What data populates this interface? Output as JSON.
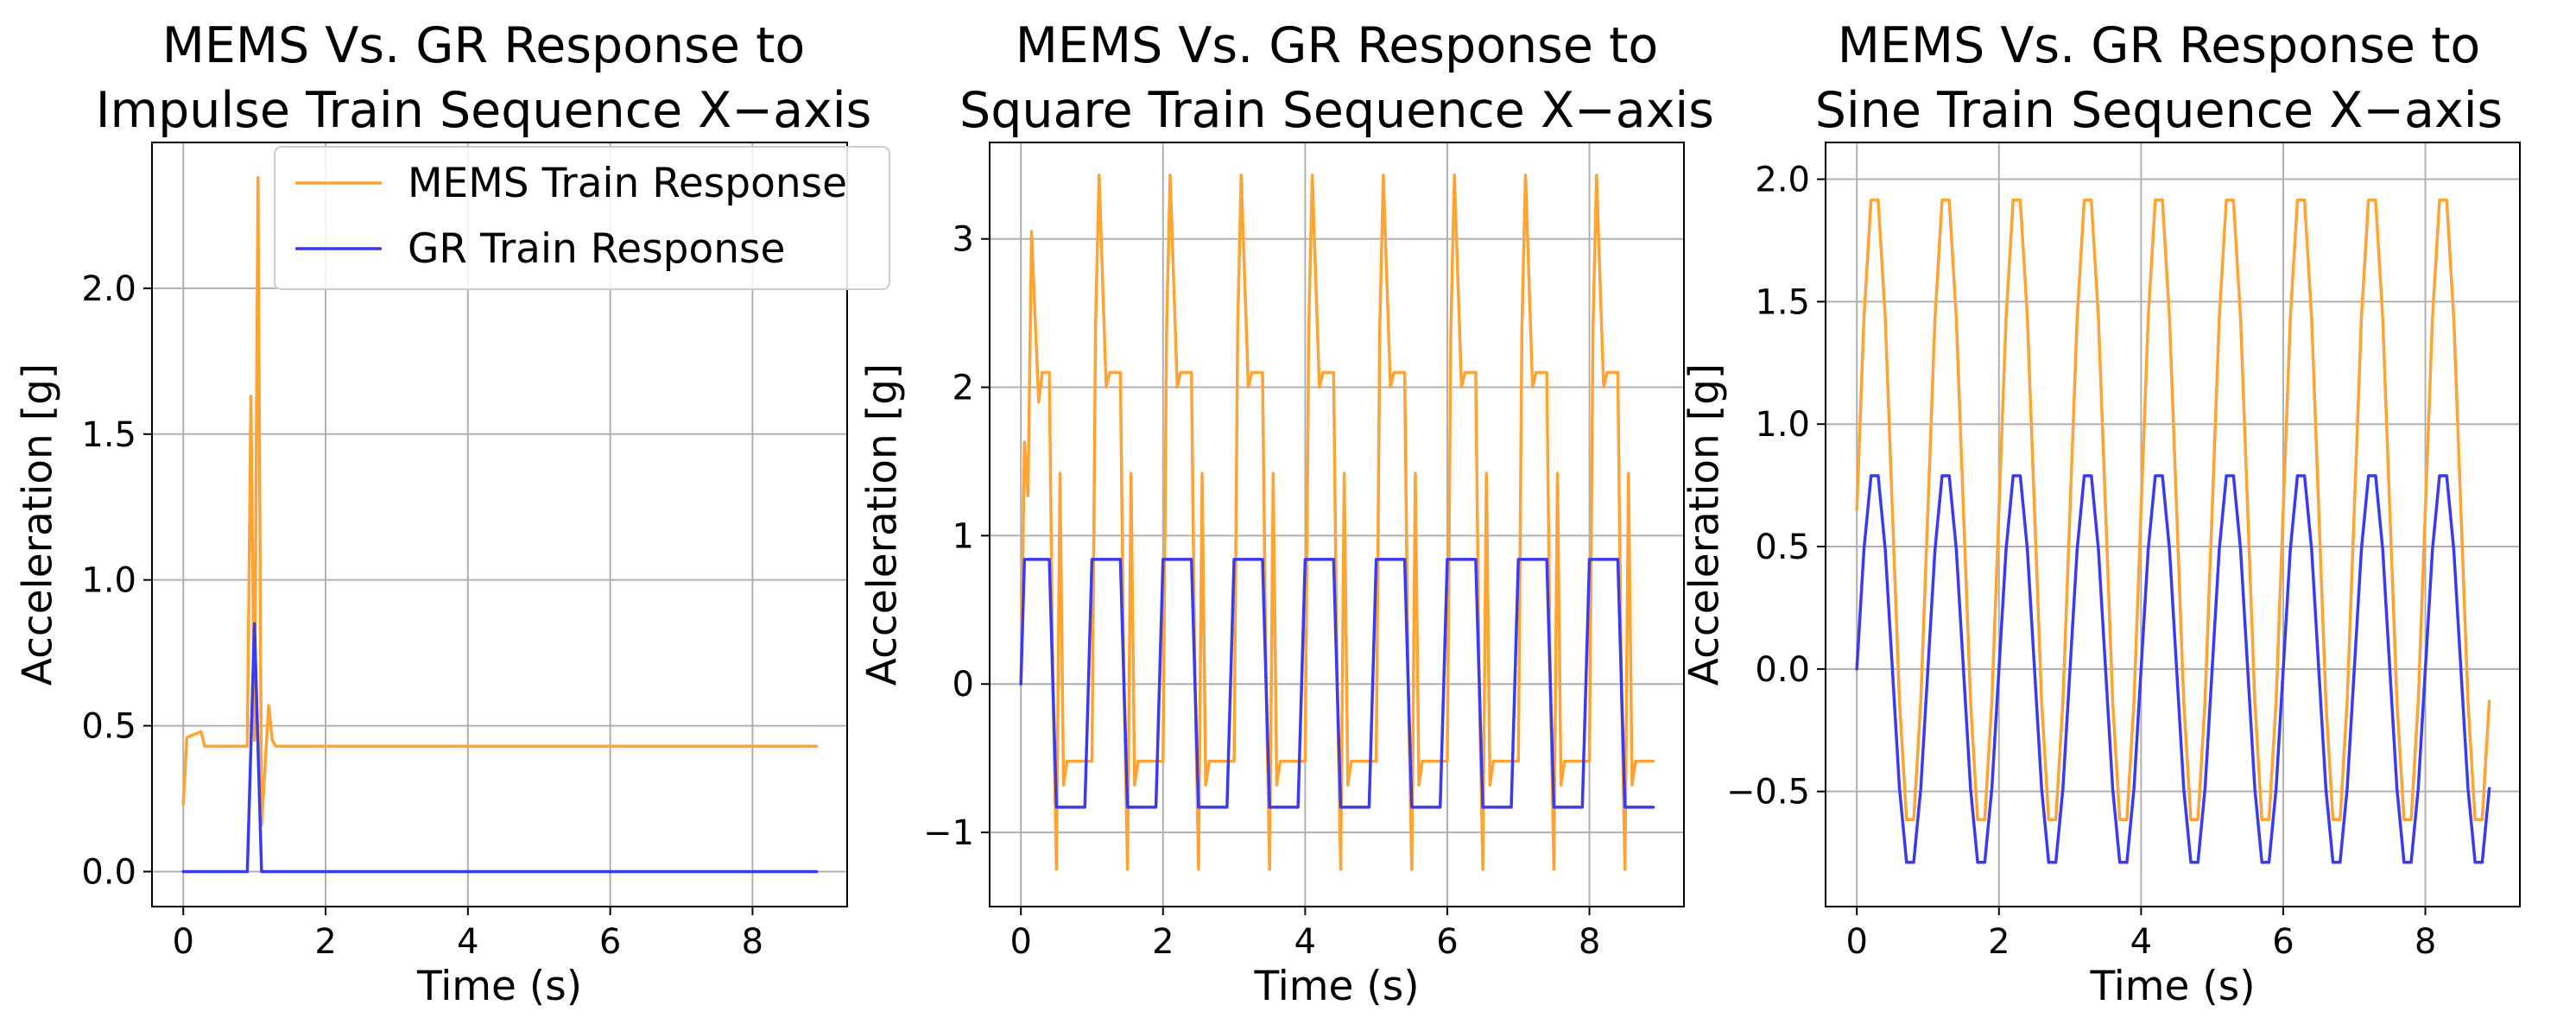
{
  "figure": {
    "colors": {
      "mems": "#FFA333",
      "gr": "#3A3AF0"
    },
    "legend": {
      "placement": "upper-right",
      "entries": [
        "MEMS Train Response",
        "GR Train Response"
      ]
    }
  },
  "chart_data": [
    {
      "type": "line",
      "title_lines": [
        "MEMS Vs. GR Response to",
        "Impulse Train Sequence X−axis"
      ],
      "xlabel": "Time (s)",
      "ylabel": "Acceleration [g]",
      "xlim": [
        -0.44,
        9.33
      ],
      "ylim": [
        -0.12,
        2.5
      ],
      "xticks": [
        0,
        2,
        4,
        6,
        8
      ],
      "xtick_labels": [
        "0",
        "2",
        "4",
        "6",
        "8"
      ],
      "yticks": [
        0.0,
        0.5,
        1.0,
        1.5,
        2.0
      ],
      "ytick_labels": [
        "0.0",
        "0.5",
        "1.0",
        "1.5",
        "2.0"
      ],
      "grid": true,
      "show_legend": true,
      "series": [
        {
          "name": "MEMS Train Response",
          "color": "#FFA333",
          "x": [
            0.0,
            0.05,
            0.15,
            0.25,
            0.3,
            0.4,
            0.6,
            0.8,
            0.9,
            0.95,
            1.0,
            1.05,
            1.1,
            1.2,
            1.25,
            1.3,
            1.4,
            1.6,
            2.0,
            2.5,
            3.0,
            3.5,
            4.0,
            4.5,
            5.0,
            5.5,
            6.0,
            6.5,
            7.0,
            7.5,
            8.0,
            8.5,
            8.9
          ],
          "y": [
            0.23,
            0.46,
            0.47,
            0.48,
            0.43,
            0.43,
            0.43,
            0.43,
            0.43,
            1.63,
            0.45,
            2.38,
            0.16,
            0.57,
            0.45,
            0.43,
            0.43,
            0.43,
            0.43,
            0.43,
            0.43,
            0.43,
            0.43,
            0.43,
            0.43,
            0.43,
            0.43,
            0.43,
            0.43,
            0.43,
            0.43,
            0.43,
            0.43
          ]
        },
        {
          "name": "GR Train Response",
          "color": "#3A3AF0",
          "x": [
            0.0,
            0.9,
            1.0,
            1.1,
            8.9
          ],
          "y": [
            0.0,
            0.0,
            0.85,
            0.0,
            0.0
          ]
        }
      ]
    },
    {
      "type": "line",
      "title_lines": [
        "MEMS Vs. GR Response to",
        "Square Train Sequence X−axis"
      ],
      "xlabel": "Time (s)",
      "ylabel": "Acceleration [g]",
      "xlim": [
        -0.44,
        9.33
      ],
      "ylim": [
        -1.5,
        3.65
      ],
      "xticks": [
        0,
        2,
        4,
        6,
        8
      ],
      "xtick_labels": [
        "0",
        "2",
        "4",
        "6",
        "8"
      ],
      "yticks": [
        -1,
        0,
        1,
        2,
        3
      ],
      "ytick_labels": [
        "−1",
        "0",
        "1",
        "2",
        "3"
      ],
      "grid": true,
      "show_legend": false,
      "square": {
        "period": 1.0,
        "duration": 8.9,
        "high": 0.84,
        "low": -0.83
      },
      "series": [
        {
          "name": "MEMS Train Response",
          "color": "#FFA333",
          "first_cycle": {
            "x": [
              0.0,
              0.05,
              0.1,
              0.15,
              0.25,
              0.3,
              0.35,
              0.4,
              0.45,
              0.5,
              0.55,
              0.6,
              0.65,
              0.7,
              0.8,
              0.9
            ],
            "y": [
              0.0,
              1.63,
              1.27,
              3.05,
              1.9,
              2.1,
              2.1,
              2.1,
              0.0,
              -1.25,
              1.42,
              -0.68,
              -0.52,
              -0.52,
              -0.52,
              -0.52
            ]
          },
          "cycle": {
            "x": [
              0.0,
              0.05,
              0.1,
              0.2,
              0.25,
              0.3,
              0.35,
              0.4,
              0.45,
              0.5,
              0.55,
              0.6,
              0.65,
              0.7,
              0.8,
              0.9
            ],
            "y": [
              -0.52,
              2.4,
              3.43,
              2.0,
              2.1,
              2.1,
              2.1,
              2.1,
              0.0,
              -1.25,
              1.42,
              -0.68,
              -0.52,
              -0.52,
              -0.52,
              -0.52
            ]
          }
        },
        {
          "name": "GR Train Response",
          "color": "#3A3AF0"
        }
      ]
    },
    {
      "type": "line",
      "title_lines": [
        "MEMS Vs. GR Response to",
        "Sine Train Sequence X−axis"
      ],
      "xlabel": "Time (s)",
      "ylabel": "Acceleration [g]",
      "xlim": [
        -0.44,
        9.33
      ],
      "ylim": [
        -0.97,
        2.15
      ],
      "xticks": [
        0,
        2,
        4,
        6,
        8
      ],
      "xtick_labels": [
        "0",
        "2",
        "4",
        "6",
        "8"
      ],
      "yticks": [
        -0.5,
        0.0,
        0.5,
        1.0,
        1.5,
        2.0
      ],
      "ytick_labels": [
        "−0.5",
        "0.0",
        "0.5",
        "1.0",
        "1.5",
        "2.0"
      ],
      "grid": true,
      "show_legend": false,
      "sine": {
        "period": 1.0,
        "sample_step": 0.1,
        "duration": 8.9
      },
      "series": [
        {
          "name": "MEMS Train Response",
          "color": "#FFA333",
          "offset": 0.65,
          "amplitude": 1.33
        },
        {
          "name": "GR Train Response",
          "color": "#3A3AF0",
          "offset": 0.0,
          "amplitude": 0.83
        }
      ]
    }
  ]
}
